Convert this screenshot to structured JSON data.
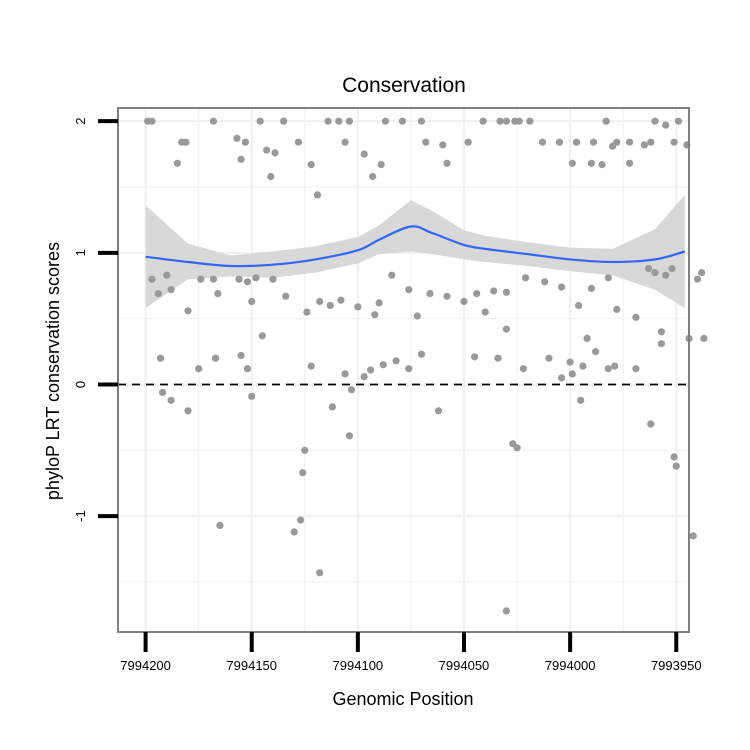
{
  "chart_data": {
    "type": "scatter",
    "title": "Conservation",
    "xlabel": "Genomic Position",
    "ylabel": "phyloP LRT conservation scores",
    "xlim": [
      7994213,
      7993944
    ],
    "x_reversed": true,
    "ylim": [
      -1.88,
      2.1
    ],
    "x_ticks": [
      7994200,
      7994150,
      7994100,
      7994050,
      7994000,
      7993950
    ],
    "y_ticks": [
      -1,
      0,
      1,
      2
    ],
    "grid": true,
    "reference_line": {
      "y": 0,
      "style": "dashed"
    },
    "colors": {
      "points": "#999999",
      "smooth": "#3366ff",
      "ribbon": "#d6d6d6",
      "panel_border": "#7f7f7f",
      "grid": "#f0f0f0"
    },
    "points": [
      [
        7994199,
        2.0
      ],
      [
        7994197,
        2.0
      ],
      [
        7994183,
        1.84
      ],
      [
        7994181,
        1.84
      ],
      [
        7994185,
        1.68
      ],
      [
        7994168,
        2.0
      ],
      [
        7994157,
        1.87
      ],
      [
        7994153,
        1.84
      ],
      [
        7994155,
        1.71
      ],
      [
        7994146,
        2.0
      ],
      [
        7994143,
        1.78
      ],
      [
        7994139,
        1.76
      ],
      [
        7994141,
        1.58
      ],
      [
        7994135,
        2.0
      ],
      [
        7994128,
        1.84
      ],
      [
        7994122,
        1.67
      ],
      [
        7994119,
        1.44
      ],
      [
        7994114,
        2.0
      ],
      [
        7994109,
        2.0
      ],
      [
        7994104,
        2.0
      ],
      [
        7994106,
        1.84
      ],
      [
        7994097,
        1.75
      ],
      [
        7994093,
        1.58
      ],
      [
        7994089,
        1.67
      ],
      [
        7994087,
        2.0
      ],
      [
        7994079,
        2.0
      ],
      [
        7994070,
        2.0
      ],
      [
        7994068,
        1.84
      ],
      [
        7994060,
        1.82
      ],
      [
        7994058,
        1.68
      ],
      [
        7994048,
        1.84
      ],
      [
        7994041,
        2.0
      ],
      [
        7994033,
        2.0
      ],
      [
        7994030,
        2.0
      ],
      [
        7994024,
        2.0
      ],
      [
        7994019,
        2.0
      ],
      [
        7994013,
        1.84
      ],
      [
        7994005,
        1.84
      ],
      [
        7993997,
        1.84
      ],
      [
        7993989,
        1.84
      ],
      [
        7993985,
        1.67
      ],
      [
        7993978,
        1.84
      ],
      [
        7993972,
        1.84
      ],
      [
        7993965,
        1.82
      ],
      [
        7993962,
        1.84
      ],
      [
        7993949,
        2.0
      ],
      [
        7993951,
        1.84
      ],
      [
        7993972,
        1.68
      ],
      [
        7993980,
        1.81
      ],
      [
        7993990,
        1.68
      ],
      [
        7993999,
        1.68
      ],
      [
        7994026,
        2.0
      ],
      [
        7993983,
        2.0
      ],
      [
        7993960,
        2.0
      ],
      [
        7993955,
        1.97
      ],
      [
        7993945,
        1.82
      ],
      [
        7994197,
        0.8
      ],
      [
        7994194,
        0.69
      ],
      [
        7994188,
        0.72
      ],
      [
        7994180,
        0.56
      ],
      [
        7994174,
        0.8
      ],
      [
        7994168,
        0.8
      ],
      [
        7994166,
        0.69
      ],
      [
        7994156,
        0.8
      ],
      [
        7994152,
        0.78
      ],
      [
        7994148,
        0.81
      ],
      [
        7994140,
        0.8
      ],
      [
        7994134,
        0.67
      ],
      [
        7994124,
        0.55
      ],
      [
        7994118,
        0.63
      ],
      [
        7994113,
        0.6
      ],
      [
        7994108,
        0.64
      ],
      [
        7994100,
        0.59
      ],
      [
        7994092,
        0.53
      ],
      [
        7994084,
        0.83
      ],
      [
        7994076,
        0.72
      ],
      [
        7994072,
        0.52
      ],
      [
        7994066,
        0.69
      ],
      [
        7994058,
        0.67
      ],
      [
        7994050,
        0.63
      ],
      [
        7994044,
        0.69
      ],
      [
        7994036,
        0.71
      ],
      [
        7994030,
        0.7
      ],
      [
        7994021,
        0.81
      ],
      [
        7994012,
        0.78
      ],
      [
        7994004,
        0.74
      ],
      [
        7993996,
        0.6
      ],
      [
        7993990,
        0.73
      ],
      [
        7993982,
        0.81
      ],
      [
        7993978,
        0.57
      ],
      [
        7993969,
        0.51
      ],
      [
        7993963,
        0.88
      ],
      [
        7993952,
        0.88
      ],
      [
        7993955,
        0.83
      ],
      [
        7993960,
        0.85
      ],
      [
        7994040,
        0.55
      ],
      [
        7994090,
        0.62
      ],
      [
        7994150,
        0.63
      ],
      [
        7994190,
        0.83
      ],
      [
        7993940,
        0.8
      ],
      [
        7994193,
        0.2
      ],
      [
        7994192,
        -0.06
      ],
      [
        7994188,
        -0.12
      ],
      [
        7994180,
        -0.2
      ],
      [
        7994175,
        0.12
      ],
      [
        7994167,
        0.2
      ],
      [
        7994155,
        0.22
      ],
      [
        7994152,
        0.12
      ],
      [
        7994150,
        -0.09
      ],
      [
        7994145,
        0.37
      ],
      [
        7994122,
        0.14
      ],
      [
        7994125,
        -0.5
      ],
      [
        7994126,
        -0.67
      ],
      [
        7994130,
        -1.12
      ],
      [
        7994127,
        -1.03
      ],
      [
        7994112,
        -0.17
      ],
      [
        7994106,
        0.08
      ],
      [
        7994103,
        -0.04
      ],
      [
        7994097,
        0.06
      ],
      [
        7994094,
        0.11
      ],
      [
        7994088,
        0.15
      ],
      [
        7994082,
        0.18
      ],
      [
        7994076,
        0.12
      ],
      [
        7994070,
        0.23
      ],
      [
        7994062,
        -0.2
      ],
      [
        7994045,
        0.21
      ],
      [
        7994034,
        0.2
      ],
      [
        7994030,
        0.42
      ],
      [
        7994027,
        -0.45
      ],
      [
        7994025,
        -0.48
      ],
      [
        7994022,
        0.12
      ],
      [
        7994010,
        0.2
      ],
      [
        7994004,
        0.05
      ],
      [
        7993999,
        0.08
      ],
      [
        7993995,
        -0.12
      ],
      [
        7993994,
        0.14
      ],
      [
        7993992,
        0.35
      ],
      [
        7993988,
        0.25
      ],
      [
        7993982,
        0.12
      ],
      [
        7993979,
        0.14
      ],
      [
        7993969,
        0.12
      ],
      [
        7993962,
        -0.3
      ],
      [
        7993957,
        0.31
      ],
      [
        7993951,
        -0.55
      ],
      [
        7993950,
        -0.62
      ],
      [
        7993944,
        0.35
      ],
      [
        7993942,
        -1.15
      ],
      [
        7993937,
        0.35
      ],
      [
        7994165,
        -1.07
      ],
      [
        7994104,
        -0.39
      ],
      [
        7994118,
        -1.43
      ],
      [
        7994030,
        -1.72
      ],
      [
        7994000,
        0.17
      ],
      [
        7993957,
        0.4
      ],
      [
        7993938,
        0.85
      ]
    ],
    "smooth": {
      "x": [
        7994200,
        7994180,
        7994160,
        7994140,
        7994120,
        7994100,
        7994090,
        7994075,
        7994065,
        7994050,
        7994040,
        7994020,
        7994000,
        7993980,
        7993960,
        7993946
      ],
      "y": [
        0.97,
        0.93,
        0.9,
        0.91,
        0.95,
        1.02,
        1.1,
        1.2,
        1.15,
        1.06,
        1.03,
        0.99,
        0.95,
        0.93,
        0.95,
        1.01
      ],
      "lower": [
        0.58,
        0.8,
        0.82,
        0.81,
        0.85,
        0.92,
        0.99,
        1.01,
        0.99,
        0.95,
        0.93,
        0.9,
        0.86,
        0.83,
        0.72,
        0.58
      ],
      "upper": [
        1.36,
        1.07,
        0.98,
        1.01,
        1.05,
        1.12,
        1.21,
        1.4,
        1.32,
        1.17,
        1.13,
        1.08,
        1.04,
        1.03,
        1.18,
        1.44
      ]
    }
  }
}
